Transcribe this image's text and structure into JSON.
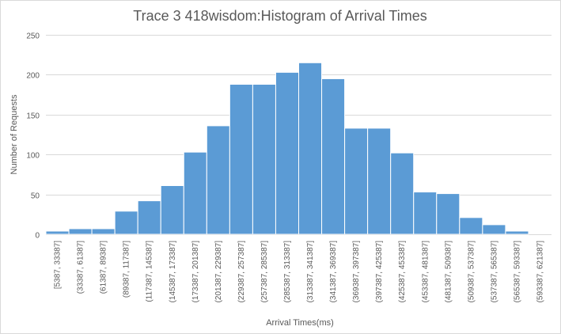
{
  "chart_data": {
    "type": "bar",
    "title": "Trace 3 418wisdom:Histogram of Arrival Times",
    "xlabel": "Arrival Times(ms)",
    "ylabel": "Number of Requests",
    "ylim": [
      0,
      250
    ],
    "yticks": [
      0,
      50,
      100,
      150,
      200,
      250
    ],
    "grid": true,
    "bar_color": "#5B9BD5",
    "categories": [
      "[5387, 33387]",
      "(33387, 61387]",
      "(61387, 89387]",
      "(89387, 117387]",
      "(117387, 145387]",
      "(145387, 173387]",
      "(173387, 201387]",
      "(201387, 229387]",
      "(229387, 257387]",
      "(257387, 285387]",
      "(285387, 313387]",
      "(313387, 341387]",
      "(341387, 369387]",
      "(369387, 397387]",
      "(397387, 425387]",
      "(425387, 453387]",
      "(453387, 481387]",
      "(481387, 509387]",
      "(509387, 537387]",
      "(537387, 565387]",
      "(565387, 593387]",
      "(593387, 621387]"
    ],
    "values": [
      4,
      7,
      7,
      29,
      42,
      61,
      103,
      136,
      188,
      188,
      203,
      215,
      195,
      133,
      133,
      102,
      53,
      51,
      21,
      12,
      4,
      0
    ]
  }
}
